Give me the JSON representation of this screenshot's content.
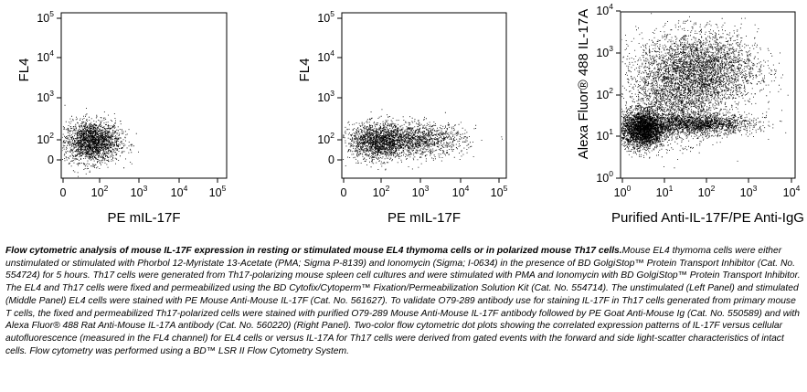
{
  "chart_data": [
    {
      "type": "scatter",
      "panel": "Left",
      "xlabel": "PE  mIL-17F",
      "ylabel": "FL4",
      "x_scale": "log",
      "y_scale": "log",
      "x_ticks": [
        {
          "base": "0",
          "exp": ""
        },
        {
          "base": "10",
          "exp": "2"
        },
        {
          "base": "10",
          "exp": "3"
        },
        {
          "base": "10",
          "exp": "4"
        },
        {
          "base": "10",
          "exp": "5"
        }
      ],
      "y_ticks": [
        {
          "base": "0",
          "exp": ""
        },
        {
          "base": "10",
          "exp": "2"
        },
        {
          "base": "10",
          "exp": "3"
        },
        {
          "base": "10",
          "exp": "4"
        },
        {
          "base": "10",
          "exp": "5"
        }
      ],
      "populations": [
        {
          "x_center": 120,
          "y_center": 80,
          "x_spread_decades": 0.35,
          "y_spread_decades": 0.25,
          "events": 2200
        }
      ]
    },
    {
      "type": "scatter",
      "panel": "Middle",
      "xlabel": "PE  mIL-17F",
      "ylabel": "FL4",
      "x_scale": "log",
      "y_scale": "log",
      "x_ticks": [
        {
          "base": "0",
          "exp": ""
        },
        {
          "base": "10",
          "exp": "2"
        },
        {
          "base": "10",
          "exp": "3"
        },
        {
          "base": "10",
          "exp": "4"
        },
        {
          "base": "10",
          "exp": "5"
        }
      ],
      "y_ticks": [
        {
          "base": "0",
          "exp": ""
        },
        {
          "base": "10",
          "exp": "2"
        },
        {
          "base": "10",
          "exp": "3"
        },
        {
          "base": "10",
          "exp": "4"
        },
        {
          "base": "10",
          "exp": "5"
        }
      ],
      "populations": [
        {
          "x_center": 150,
          "y_center": 80,
          "x_spread_decades": 0.35,
          "y_spread_decades": 0.22,
          "events": 1500
        },
        {
          "x_center": 1500,
          "y_center": 90,
          "x_spread_decades": 0.6,
          "y_spread_decades": 0.2,
          "events": 1400
        }
      ]
    },
    {
      "type": "scatter",
      "panel": "Right",
      "xlabel": "Purified Anti-IL-17F/PE Anti-IgG",
      "ylabel": "Alexa Fluor® 488  IL-17A",
      "x_scale": "log",
      "y_scale": "log",
      "xlim": [
        1,
        10000
      ],
      "ylim": [
        1,
        10000
      ],
      "x_ticks": [
        {
          "base": "10",
          "exp": "0"
        },
        {
          "base": "10",
          "exp": "1"
        },
        {
          "base": "10",
          "exp": "2"
        },
        {
          "base": "10",
          "exp": "3"
        },
        {
          "base": "10",
          "exp": "4"
        }
      ],
      "y_ticks": [
        {
          "base": "10",
          "exp": "0"
        },
        {
          "base": "10",
          "exp": "1"
        },
        {
          "base": "10",
          "exp": "2"
        },
        {
          "base": "10",
          "exp": "3"
        },
        {
          "base": "10",
          "exp": "4"
        }
      ],
      "populations": [
        {
          "x_center": 3,
          "y_center": 15,
          "x_spread_decades": 0.25,
          "y_spread_decades": 0.22,
          "events": 3000
        },
        {
          "x_center": 60,
          "y_center": 20,
          "x_spread_decades": 0.65,
          "y_spread_decades": 0.12,
          "events": 1800
        },
        {
          "x_center": 60,
          "y_center": 400,
          "x_spread_decades": 0.7,
          "y_spread_decades": 0.45,
          "events": 3500
        },
        {
          "x_center": 15,
          "y_center": 60,
          "x_spread_decades": 0.6,
          "y_spread_decades": 0.45,
          "events": 1500
        }
      ]
    }
  ],
  "caption": {
    "title": "Flow cytometric analysis of mouse IL-17F expression in resting or stimulated mouse EL4 thymoma cells or in polarized mouse Th17 cells.",
    "body": "Mouse EL4 thymoma cells were either unstimulated or stimulated with Phorbol 12-Myristate 13-Acetate (PMA; Sigma P-8139) and Ionomycin (Sigma; I-0634) in the presence of BD GolgiStop™ Protein Transport Inhibitor (Cat. No. 554724) for 5 hours. Th17 cells were generated from Th17-polarizing mouse spleen cell cultures and were stimulated with PMA and Ionomycin with BD GolgiStop™ Protein Transport Inhibitor. The EL4 and Th17 cells were fixed and permeabilized using the BD Cytofix/Cytoperm™ Fixation/Permeabilization Solution Kit (Cat. No. 554714). The unstimulated (Left Panel) and stimulated (Middle Panel) EL4 cells were stained with PE Mouse Anti-Mouse IL-17F (Cat. No. 561627). To validate O79-289 antibody use for staining IL-17F in Th17 cells generated from primary mouse T cells, the fixed and permeabilized Th17-polarized cells were stained with purified O79-289 Mouse Anti-Mouse IL-17F antibody followed by PE Goat Anti-Mouse Ig (Cat. No. 550589) and with Alexa Fluor® 488 Rat Anti-Mouse IL-17A antibody (Cat. No. 560220) (Right Panel). Two-color flow cytometric dot plots showing the correlated expression patterns of IL-17F versus cellular autofluorescence (measured in the FL4 channel) for EL4 cells or versus IL-17A for Th17 cells were derived from gated events with the forward and side light-scatter characteristics of intact cells. Flow cytometry was performed using a BD™ LSR II Flow Cytometry System."
  }
}
